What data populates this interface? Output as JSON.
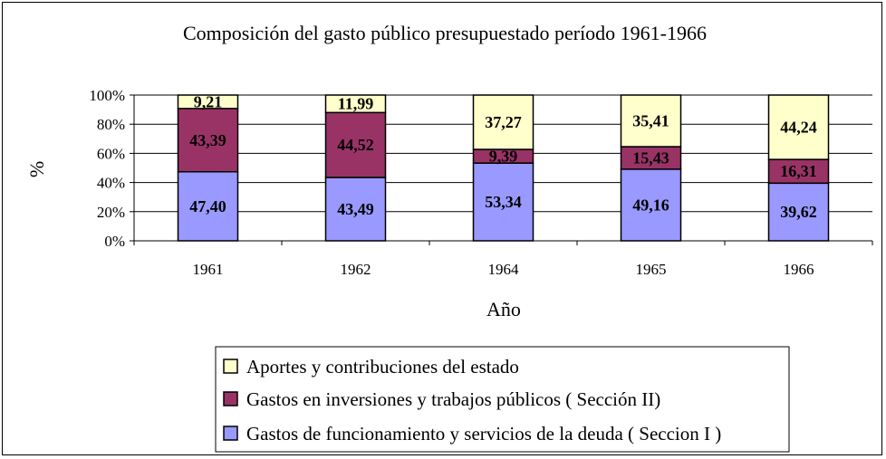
{
  "chart_data": {
    "type": "bar",
    "stacked": "percent",
    "title": "Composición del gasto público presupuestado período 1961-1966",
    "xlabel": "Año",
    "ylabel": "%",
    "categories": [
      "1961",
      "1962",
      "1964",
      "1965",
      "1966"
    ],
    "y_ticks": [
      "0%",
      "20%",
      "40%",
      "60%",
      "80%",
      "100%"
    ],
    "ylim": [
      0,
      100
    ],
    "grid": true,
    "legend_position": "bottom",
    "series": [
      {
        "name": "Gastos de funcionamiento y servicios de la deuda ( Seccion I )",
        "color": "#9999FF",
        "values": [
          47.4,
          43.49,
          53.34,
          49.16,
          39.62
        ],
        "labels": [
          "47,40",
          "43,49",
          "53,34",
          "49,16",
          "39,62"
        ]
      },
      {
        "name": "Gastos en inversiones y trabajos públicos ( Sección II)",
        "color": "#993366",
        "values": [
          43.39,
          44.52,
          9.39,
          15.43,
          16.31
        ],
        "labels": [
          "43,39",
          "44,52",
          "9,39",
          "15,43",
          "16,31"
        ]
      },
      {
        "name": "Aportes y contribuciones del estado",
        "color": "#FFFFCC",
        "values": [
          9.21,
          11.99,
          37.27,
          35.41,
          44.24
        ],
        "labels": [
          "9,21",
          "11,99",
          "37,27",
          "35,41",
          "44,24"
        ]
      }
    ],
    "legend_order": [
      2,
      1,
      0
    ]
  }
}
